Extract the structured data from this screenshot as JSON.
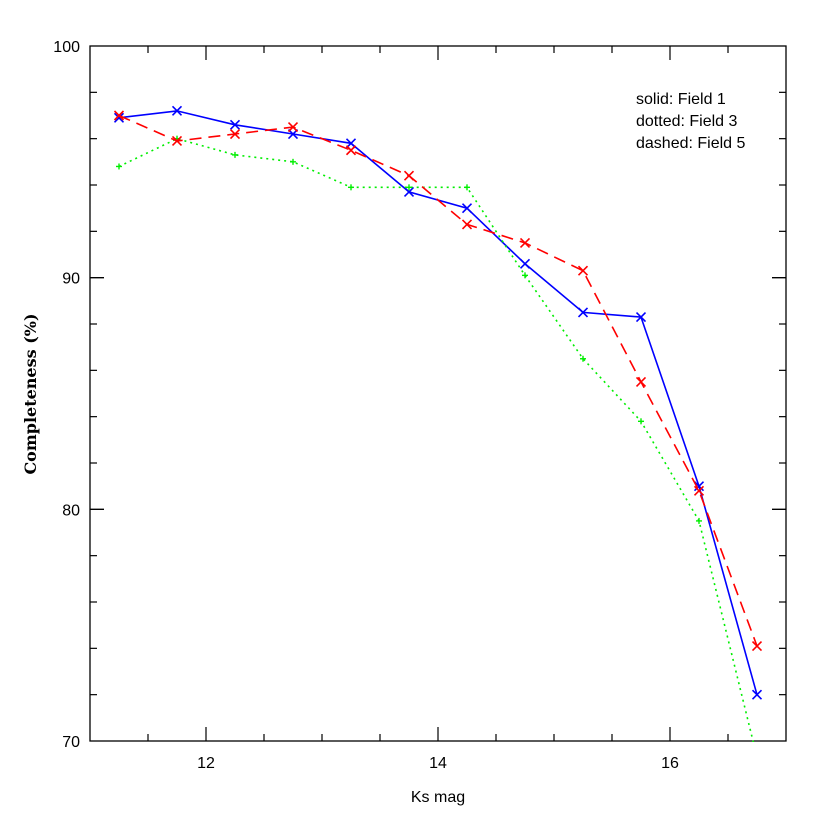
{
  "chart_data": {
    "type": "line",
    "xlabel": "Ks mag",
    "ylabel": "Completeness (%)",
    "xlim": [
      11.0,
      17.0
    ],
    "ylim": [
      70,
      100
    ],
    "x_ticks": [
      12,
      14,
      16
    ],
    "x_tick_labels": [
      "12",
      "14",
      "16"
    ],
    "y_ticks": [
      70,
      80,
      90,
      100
    ],
    "y_tick_labels": [
      "70",
      "80",
      "90",
      "100"
    ],
    "legend_placement": "top-right",
    "legend": [
      "solid: Field 1",
      "dotted: Field 3",
      "dashed: Field 5"
    ],
    "grid": false,
    "series": [
      {
        "style": "solid",
        "color": "#0000ff",
        "marker": "x",
        "x": [
          11.25,
          11.75,
          12.25,
          12.75,
          13.25,
          13.75,
          14.25,
          14.75,
          15.25,
          15.75,
          16.25,
          16.75
        ],
        "values": [
          96.9,
          97.2,
          96.6,
          96.2,
          95.8,
          93.7,
          93.0,
          90.6,
          88.5,
          88.3,
          81.0,
          72.0
        ]
      },
      {
        "style": "dotted",
        "color": "#00ee00",
        "marker": "+",
        "x": [
          11.25,
          11.75,
          12.25,
          12.75,
          13.25,
          13.75,
          14.25,
          14.75,
          15.25,
          15.75,
          16.25,
          16.75
        ],
        "values": [
          94.8,
          96.0,
          95.3,
          95.0,
          93.9,
          93.9,
          93.9,
          90.1,
          86.5,
          83.8,
          79.5,
          69.3
        ]
      },
      {
        "style": "dashed",
        "color": "#ff0000",
        "marker": "x",
        "x": [
          11.25,
          11.75,
          12.25,
          12.75,
          13.25,
          13.75,
          14.25,
          14.75,
          15.25,
          15.75,
          16.25,
          16.75
        ],
        "values": [
          97.0,
          95.9,
          96.2,
          96.5,
          95.5,
          94.4,
          92.3,
          91.5,
          90.3,
          85.5,
          80.8,
          74.1
        ]
      }
    ]
  }
}
